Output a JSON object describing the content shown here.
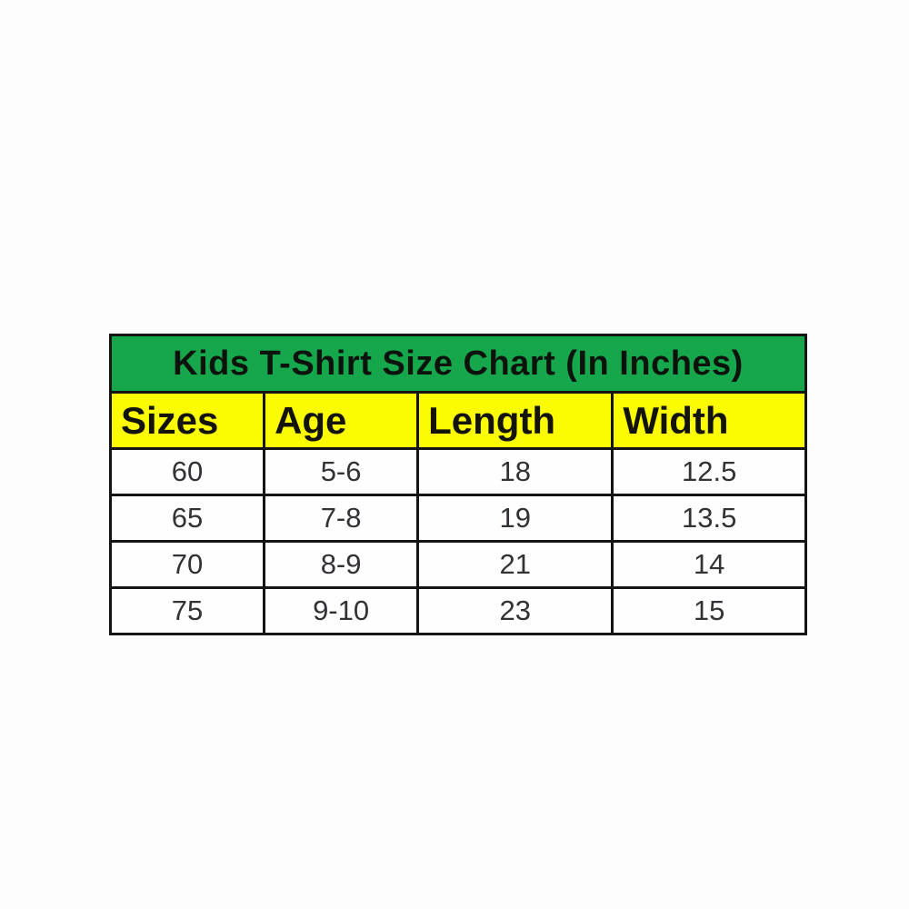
{
  "chart_data": {
    "type": "table",
    "title": "Kids T-Shirt Size Chart (In Inches)",
    "columns": [
      "Sizes",
      "Age",
      "Length",
      "Width"
    ],
    "rows": [
      [
        "60",
        "5-6",
        "18",
        "12.5"
      ],
      [
        "65",
        "7-8",
        "19",
        "13.5"
      ],
      [
        "70",
        "8-9",
        "21",
        "14"
      ],
      [
        "75",
        "9-10",
        "23",
        "15"
      ]
    ],
    "units": "inches",
    "colors": {
      "title_background": "#16a74c",
      "header_background": "#fbfb02",
      "border": "#141414",
      "cell_background": "#fefefe",
      "title_text": "#0c120c",
      "data_text": "#343036",
      "page_background": "#fdfdfd"
    },
    "layout": {
      "title_row_align": "center",
      "header_row_align": "left",
      "data_row_align": "center"
    }
  }
}
